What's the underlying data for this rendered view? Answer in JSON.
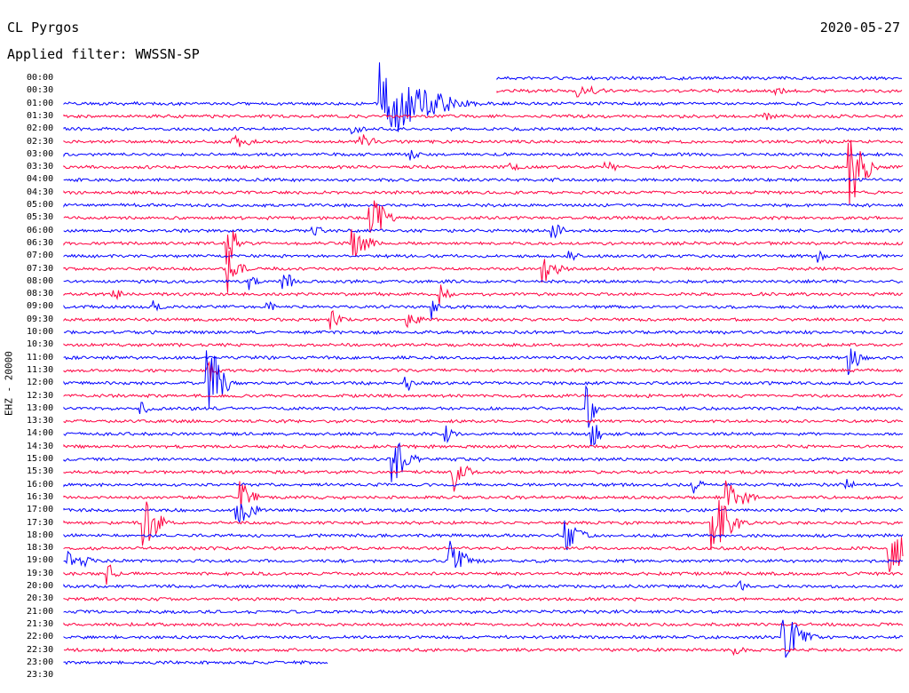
{
  "header": {
    "station": "CL Pyrgos",
    "date": "2020-05-27",
    "filter": "Applied filter: WWSSN-SP",
    "channel": "EHZ - 20000"
  },
  "times": [
    "00:00",
    "00:30",
    "01:00",
    "01:30",
    "02:00",
    "02:30",
    "03:00",
    "03:30",
    "04:00",
    "04:30",
    "05:00",
    "05:30",
    "06:00",
    "06:30",
    "07:00",
    "07:30",
    "08:00",
    "08:30",
    "09:00",
    "09:30",
    "10:00",
    "10:30",
    "11:00",
    "11:30",
    "12:00",
    "12:30",
    "13:00",
    "13:30",
    "14:00",
    "14:30",
    "15:00",
    "15:30",
    "16:00",
    "16:30",
    "17:00",
    "17:30",
    "18:00",
    "18:30",
    "19:00",
    "19:30",
    "20:00",
    "20:30",
    "21:00",
    "21:30",
    "22:00",
    "22:30",
    "23:00",
    "23:30"
  ],
  "colors": {
    "blue": "#0000ff",
    "red": "#ff0040"
  }
}
